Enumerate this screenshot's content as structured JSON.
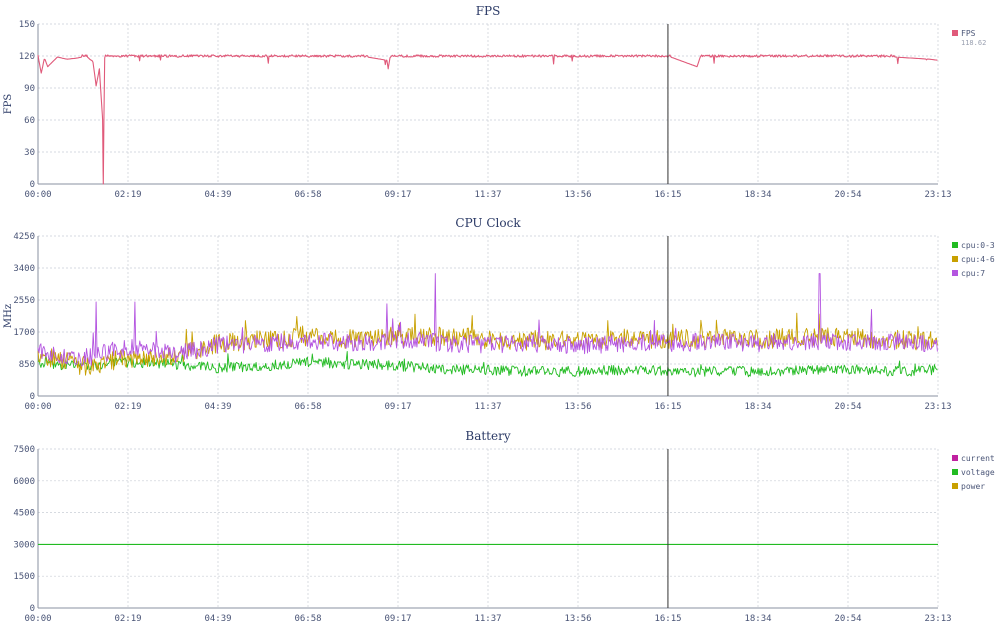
{
  "chart_data": [
    {
      "type": "line",
      "title": "FPS",
      "ylabel": "FPS",
      "ylim": [
        0,
        150
      ],
      "yticks": [
        "0",
        "30",
        "60",
        "90",
        "120",
        "150"
      ],
      "xticks": [
        "00:00",
        "02:19",
        "04:39",
        "06:58",
        "09:17",
        "11:37",
        "13:56",
        "16:15",
        "18:34",
        "20:54",
        "23:13"
      ],
      "xlim_minutes": [
        0,
        1393
      ],
      "cursor_minute": 975,
      "grid": true,
      "legend_position": "right",
      "series": [
        {
          "name": "FPS",
          "color": "#e05a7a",
          "legend_value": "118.62",
          "baseline": 120,
          "x": [
            0,
            5,
            10,
            15,
            30,
            45,
            60,
            75,
            80,
            85,
            90,
            95,
            100,
            101,
            103,
            105,
            110,
            130,
            200,
            300,
            400,
            500,
            540,
            542,
            545,
            560,
            650,
            800,
            975,
            1020,
            1025,
            1030,
            1100,
            1200,
            1300,
            1380,
            1393
          ],
          "y": [
            120,
            104,
            118,
            110,
            119,
            117,
            118,
            120,
            117,
            115,
            92,
            108,
            60,
            0,
            118,
            120,
            119,
            120,
            120,
            120,
            120,
            120,
            116,
            108,
            119,
            120,
            120,
            120,
            120,
            110,
            119,
            120,
            120,
            120,
            120,
            117,
            116
          ]
        }
      ]
    },
    {
      "type": "line",
      "title": "CPU Clock",
      "ylabel": "MHz",
      "ylim": [
        0,
        4250
      ],
      "yticks": [
        "0",
        "850",
        "1700",
        "2550",
        "3400",
        "4250"
      ],
      "xticks": [
        "00:00",
        "02:19",
        "04:39",
        "06:58",
        "09:17",
        "11:37",
        "13:56",
        "16:15",
        "18:34",
        "20:54",
        "23:13"
      ],
      "xlim_minutes": [
        0,
        1393
      ],
      "cursor_minute": 975,
      "grid": true,
      "legend_position": "right",
      "series": [
        {
          "name": "cpu:0-3",
          "color": "#22bb22",
          "x": [
            0,
            70,
            140,
            210,
            280,
            350,
            420,
            490,
            560,
            630,
            700,
            770,
            840,
            910,
            980,
            1050,
            1120,
            1190,
            1260,
            1330,
            1393
          ],
          "y": [
            850,
            800,
            900,
            850,
            750,
            800,
            900,
            850,
            800,
            700,
            700,
            650,
            650,
            700,
            650,
            650,
            650,
            700,
            700,
            650,
            700
          ],
          "spread": 140
        },
        {
          "name": "cpu:4-6",
          "color": "#c8a000",
          "x": [
            0,
            70,
            140,
            210,
            280,
            350,
            420,
            490,
            560,
            630,
            700,
            770,
            840,
            910,
            980,
            1050,
            1120,
            1190,
            1260,
            1330,
            1393
          ],
          "y": [
            1100,
            800,
            1000,
            1050,
            1400,
            1500,
            1600,
            1500,
            1550,
            1600,
            1500,
            1450,
            1500,
            1550,
            1500,
            1550,
            1500,
            1600,
            1550,
            1500,
            1450
          ],
          "spread": 260
        },
        {
          "name": "cpu:7",
          "color": "#b455e0",
          "x": [
            0,
            70,
            140,
            210,
            280,
            350,
            420,
            490,
            560,
            630,
            700,
            770,
            840,
            910,
            980,
            1050,
            1120,
            1190,
            1260,
            1330,
            1393
          ],
          "y": [
            1200,
            1000,
            1300,
            1100,
            1350,
            1400,
            1450,
            1400,
            1500,
            1400,
            1350,
            1400,
            1350,
            1400,
            1400,
            1450,
            1400,
            1450,
            1400,
            1450,
            1350
          ],
          "spread": 240,
          "peaks": [
            [
              90,
              2500
            ],
            [
              150,
              2500
            ],
            [
              540,
              2450
            ],
            [
              615,
              3250
            ],
            [
              1210,
              3250
            ],
            [
              1290,
              2300
            ]
          ]
        }
      ]
    },
    {
      "type": "line",
      "title": "Battery",
      "ylabel": "",
      "ylim": [
        0,
        7500
      ],
      "yticks": [
        "0",
        "1500",
        "3000",
        "4500",
        "6000",
        "7500"
      ],
      "xticks": [
        "00:00",
        "02:19",
        "04:39",
        "06:58",
        "09:17",
        "11:37",
        "13:56",
        "16:15",
        "18:34",
        "20:54",
        "23:13"
      ],
      "xlim_minutes": [
        0,
        1393
      ],
      "cursor_minute": 975,
      "grid": true,
      "legend_position": "right",
      "series": [
        {
          "name": "current",
          "color": "#c020a0",
          "x": [],
          "y": []
        },
        {
          "name": "voltage",
          "color": "#22bb22",
          "x": [
            0,
            1393
          ],
          "y": [
            3000,
            3000
          ]
        },
        {
          "name": "power",
          "color": "#c8a000",
          "x": [],
          "y": []
        }
      ]
    }
  ]
}
